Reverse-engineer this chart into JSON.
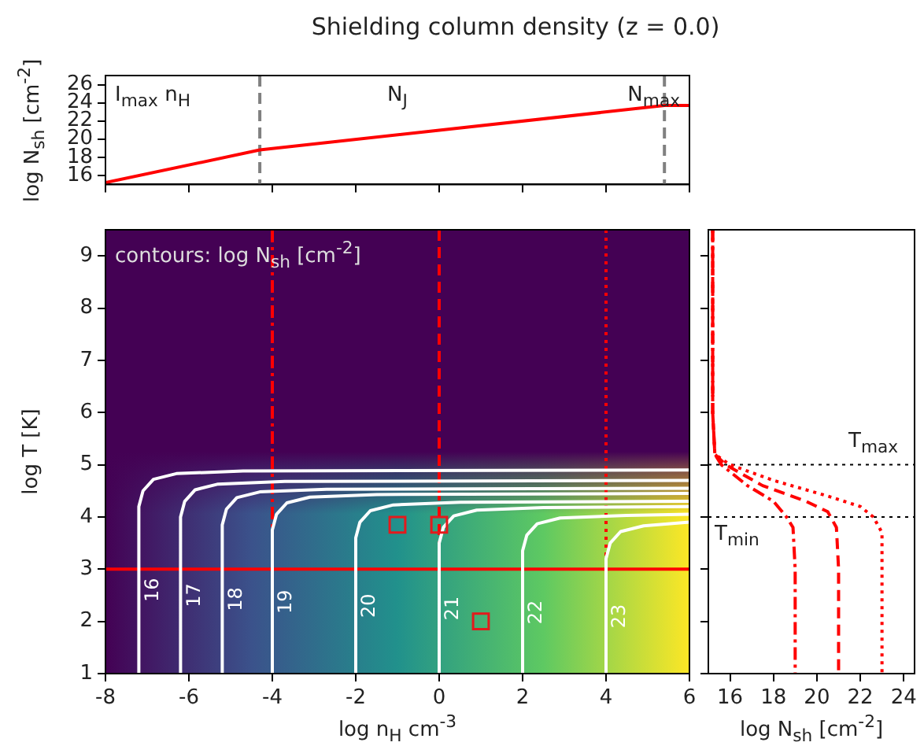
{
  "chart_data": [
    {
      "type": "line",
      "title": "Shielding column density (z = 0.0)",
      "ylabel": "log N$_{sh}$ [cm$^{-2}$]",
      "xlim": [
        -8,
        6
      ],
      "xticks": [
        -8,
        -6,
        -4,
        -2,
        0,
        2,
        4,
        6
      ],
      "ylim": [
        15,
        27
      ],
      "yticks": [
        16,
        18,
        20,
        22,
        24,
        26
      ],
      "tick_labels": "y",
      "grid": false,
      "legend": false,
      "series": [
        {
          "color": "#ff0000",
          "x": [
            -8,
            -4.3,
            5.4,
            6
          ],
          "values": [
            15.2,
            18.8,
            23.7,
            23.7
          ]
        }
      ],
      "ref_lines": [
        {
          "axis": "x",
          "value": -4.3,
          "color": "#808080",
          "line_style": "dashed"
        },
        {
          "axis": "x",
          "value": 5.4,
          "color": "#808080",
          "line_style": "dashed"
        }
      ],
      "annotations": [
        "I$_{max}$ n$_{H}$",
        "N$_{J}$",
        "N$_{max}$"
      ]
    },
    {
      "type": "line",
      "xlabel": "log n$_{H}$ cm$^{-3}$",
      "ylabel": "log T [K]",
      "xlim": [
        -8,
        6
      ],
      "xticks": [
        -8,
        -6,
        -4,
        -2,
        0,
        2,
        4,
        6
      ],
      "ylim": [
        1,
        9.5
      ],
      "yticks": [
        1,
        2,
        3,
        4,
        5,
        6,
        7,
        8,
        9
      ],
      "grid": false,
      "legend": false,
      "series": [
        {
          "name": "16",
          "color": "#ffffff",
          "x": [
            -7.2,
            -7.2,
            -7.1,
            -6.85,
            -6.3,
            -4.7,
            6
          ],
          "values": [
            1,
            4.2,
            4.5,
            4.72,
            4.83,
            4.88,
            4.9
          ]
        },
        {
          "name": "17",
          "color": "#ffffff",
          "x": [
            -6.2,
            -6.2,
            -6.1,
            -5.85,
            -5.3,
            -3.7,
            6
          ],
          "values": [
            1,
            4.0,
            4.3,
            4.52,
            4.63,
            4.68,
            4.7
          ]
        },
        {
          "name": "18",
          "color": "#ffffff",
          "x": [
            -5.2,
            -5.2,
            -5.1,
            -4.85,
            -4.3,
            -2.7,
            6
          ],
          "values": [
            1,
            3.85,
            4.15,
            4.37,
            4.48,
            4.53,
            4.55
          ]
        },
        {
          "name": "19",
          "color": "#ffffff",
          "x": [
            -4.0,
            -4.0,
            -3.9,
            -3.65,
            -3.1,
            -1.5,
            6
          ],
          "values": [
            1,
            3.75,
            4.05,
            4.27,
            4.38,
            4.43,
            4.45
          ]
        },
        {
          "name": "20",
          "color": "#ffffff",
          "x": [
            -2.0,
            -2.0,
            -1.9,
            -1.65,
            -1.1,
            0.5,
            6
          ],
          "values": [
            1,
            3.6,
            3.9,
            4.12,
            4.23,
            4.28,
            4.3
          ]
        },
        {
          "name": "21",
          "color": "#ffffff",
          "x": [
            0,
            0,
            0.1,
            0.35,
            0.9,
            2.5,
            6
          ],
          "values": [
            1,
            3.5,
            3.8,
            4.02,
            4.13,
            4.18,
            4.2
          ]
        },
        {
          "name": "22",
          "color": "#ffffff",
          "x": [
            2,
            2,
            2.1,
            2.35,
            2.9,
            4.5,
            6
          ],
          "values": [
            1,
            3.35,
            3.65,
            3.87,
            3.98,
            4.03,
            4.05
          ]
        },
        {
          "name": "23",
          "color": "#ffffff",
          "x": [
            4,
            4,
            4.1,
            4.35,
            4.9,
            6
          ],
          "values": [
            1,
            3.2,
            3.5,
            3.72,
            3.83,
            3.9
          ]
        },
        {
          "type": "scatter",
          "marker": "square",
          "color": "#e41a1c",
          "x": [
            -1,
            0,
            1
          ],
          "values": [
            3.85,
            3.85,
            2
          ]
        }
      ],
      "ref_lines": [
        {
          "axis": "x",
          "value": -4,
          "color": "#ff0000",
          "line_style": "dashdot"
        },
        {
          "axis": "x",
          "value": 0,
          "color": "#ff0000",
          "line_style": "dashed"
        },
        {
          "axis": "x",
          "value": 4,
          "color": "#ff0000",
          "line_style": "dotted"
        },
        {
          "axis": "y",
          "value": 3,
          "color": "#ff0000",
          "line_style": "solid"
        }
      ],
      "annotations": [
        "contours: log N$_{sh}$ [cm$^{-2}$]"
      ]
    },
    {
      "type": "line",
      "xlabel": "log N$_{sh}$ [cm$^{-2}$]",
      "xlim": [
        15,
        24.5
      ],
      "xticks": [
        16,
        18,
        20,
        22,
        24
      ],
      "ylim": [
        1,
        9.5
      ],
      "yticks": [
        1,
        2,
        3,
        4,
        5,
        6,
        7,
        8,
        9
      ],
      "tick_labels": "x",
      "grid": false,
      "legend": false,
      "series": [
        {
          "color": "#ff0000",
          "line_style": "dashdot",
          "x": [
            15.2,
            15.2,
            15.3,
            15.6,
            16.8,
            18.0,
            18.6,
            18.9,
            19,
            19
          ],
          "values": [
            9.5,
            6,
            5.2,
            5,
            4.6,
            4.3,
            4,
            3.8,
            3,
            1
          ]
        },
        {
          "color": "#ff0000",
          "line_style": "dashed",
          "x": [
            15.2,
            15.2,
            15.3,
            15.8,
            17.5,
            19.5,
            20.5,
            20.9,
            21,
            21
          ],
          "values": [
            9.5,
            6,
            5.2,
            5,
            4.6,
            4.3,
            4.1,
            3.8,
            3,
            1
          ]
        },
        {
          "color": "#ff0000",
          "line_style": "dotted",
          "x": [
            15.2,
            15.2,
            15.3,
            16.0,
            18.0,
            20.5,
            22.0,
            22.6,
            23,
            23
          ],
          "values": [
            9.5,
            6,
            5.2,
            5,
            4.7,
            4.4,
            4.2,
            4.0,
            3.7,
            1
          ]
        }
      ],
      "ref_lines": [
        {
          "axis": "y",
          "value": 5,
          "color": "#000000",
          "line_style": "dotted",
          "label": "T$_{max}$"
        },
        {
          "axis": "y",
          "value": 4,
          "color": "#000000",
          "line_style": "dotted",
          "label": "T$_{min}$"
        }
      ]
    }
  ]
}
